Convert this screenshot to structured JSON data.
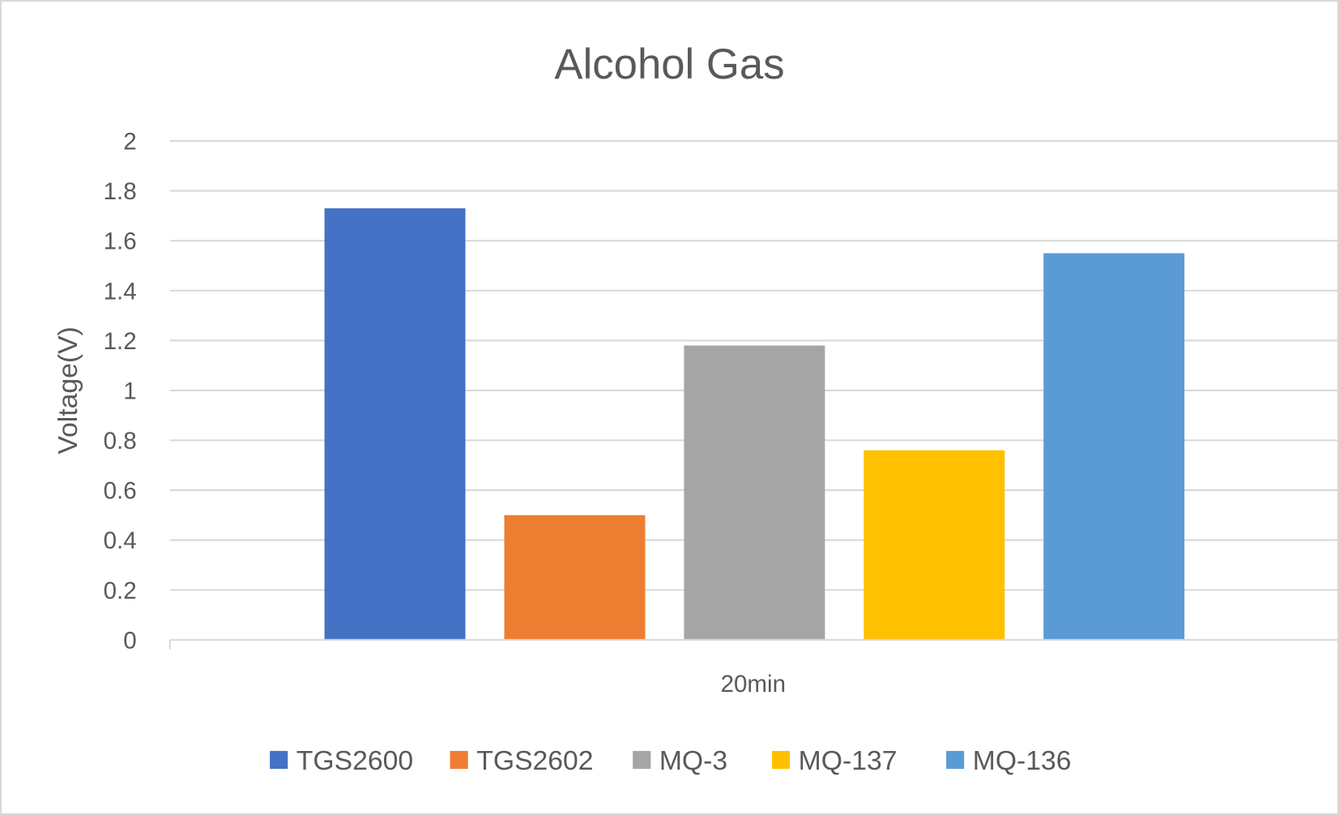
{
  "chart_data": {
    "type": "bar",
    "title": "Alcohol Gas",
    "xlabel": "",
    "ylabel": "Voltage(V)",
    "categories": [
      "20min"
    ],
    "series": [
      {
        "name": "TGS2600",
        "values": [
          1.73
        ],
        "color": "#4472C4"
      },
      {
        "name": "TGS2602",
        "values": [
          0.5
        ],
        "color": "#ED7D31"
      },
      {
        "name": "MQ-3",
        "values": [
          1.18
        ],
        "color": "#A5A5A5"
      },
      {
        "name": "MQ-137",
        "values": [
          0.76
        ],
        "color": "#FFC000"
      },
      {
        "name": "MQ-136",
        "values": [
          1.55
        ],
        "color": "#5B9BD5"
      }
    ],
    "ylim": [
      0,
      2
    ],
    "yticks": [
      "0",
      "0.2",
      "0.4",
      "0.6",
      "0.8",
      "1",
      "1.2",
      "1.4",
      "1.6",
      "1.8",
      "2"
    ],
    "grid": true,
    "legend_position": "bottom"
  }
}
